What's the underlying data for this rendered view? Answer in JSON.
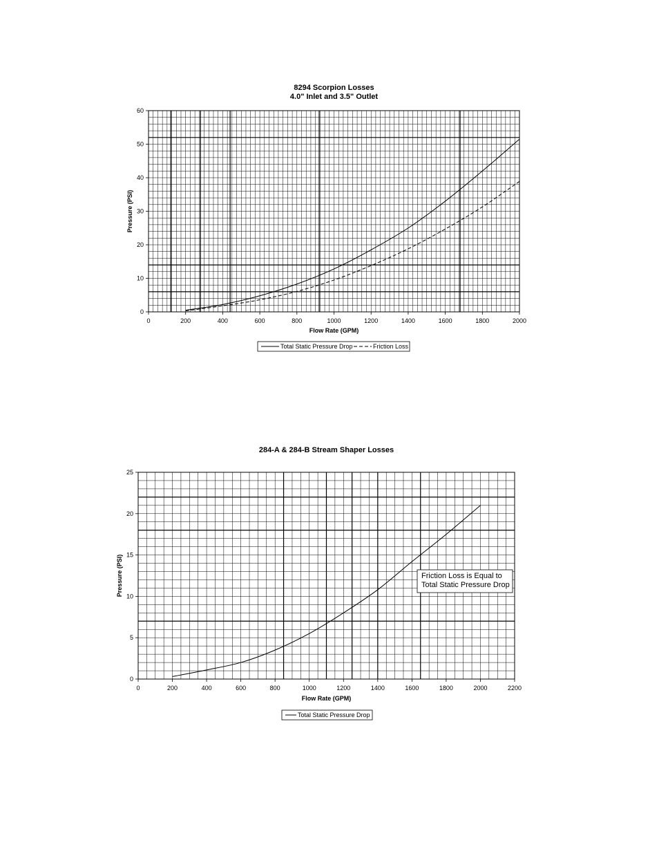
{
  "chart_data": [
    {
      "type": "line",
      "title": "8294 Scorpion Losses",
      "subtitle": "4.0\" Inlet and 3.5\" Outlet",
      "xlabel": "Flow Rate (GPM)",
      "ylabel": "Pressure (PSI)",
      "xlim": [
        0,
        2000
      ],
      "ylim": [
        0,
        60
      ],
      "xticks": [
        "0",
        "200",
        "400",
        "600",
        "800",
        "1000",
        "1200",
        "1400",
        "1600",
        "1800",
        "2000"
      ],
      "yticks": [
        "0",
        "10",
        "20",
        "30",
        "40",
        "50",
        "60"
      ],
      "grid": true,
      "legend_position": "bottom",
      "series": [
        {
          "name": "Total Static Pressure Drop",
          "style": "solid",
          "x": [
            200,
            400,
            600,
            800,
            1000,
            1200,
            1400,
            1600,
            1800,
            2000
          ],
          "y": [
            0.5,
            2.2,
            4.8,
            8.3,
            12.8,
            18.5,
            25.0,
            33.0,
            42.0,
            51.5
          ]
        },
        {
          "name": "Friction Loss",
          "style": "dashed",
          "x": [
            200,
            400,
            600,
            800,
            1000,
            1200,
            1400,
            1600,
            1800,
            2000
          ],
          "y": [
            0.3,
            1.8,
            3.6,
            6.1,
            9.5,
            13.8,
            18.8,
            24.7,
            31.3,
            38.9
          ]
        }
      ]
    },
    {
      "type": "line",
      "title": "284-A & 284-B Stream Shaper Losses",
      "xlabel": "Flow Rate (GPM)",
      "ylabel": "Pressure (PSI)",
      "xlim": [
        0,
        2200
      ],
      "ylim": [
        0,
        25
      ],
      "xticks": [
        "0",
        "200",
        "400",
        "600",
        "800",
        "1000",
        "1200",
        "1400",
        "1600",
        "1800",
        "2000",
        "2200"
      ],
      "yticks": [
        "0",
        "5",
        "10",
        "15",
        "20",
        "25"
      ],
      "grid": true,
      "legend_position": "bottom",
      "annotation": [
        "Friction Loss is Equal to",
        "Total Static Pressure Drop"
      ],
      "series": [
        {
          "name": "Total Static Pressure Drop",
          "style": "solid",
          "x": [
            200,
            400,
            600,
            800,
            1000,
            1200,
            1400,
            1600,
            1800,
            2000
          ],
          "y": [
            0.3,
            1.1,
            2.0,
            3.5,
            5.5,
            8.0,
            10.8,
            14.2,
            17.5,
            21.0
          ]
        }
      ]
    }
  ]
}
